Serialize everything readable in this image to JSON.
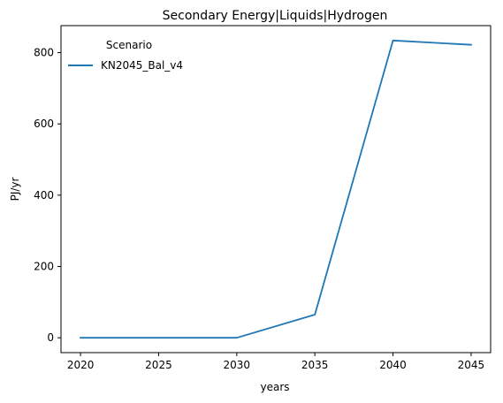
{
  "chart_data": {
    "type": "line",
    "title": "Secondary Energy|Liquids|Hydrogen",
    "xlabel": "years",
    "ylabel": "PJ/yr",
    "x": [
      2020,
      2025,
      2030,
      2035,
      2040,
      2045
    ],
    "series": [
      {
        "name": "KN2045_Bal_v4",
        "values": [
          0,
          0,
          0,
          65,
          834,
          822
        ],
        "color": "#1f77b4"
      }
    ],
    "xlim": [
      2018.75,
      2046.25
    ],
    "ylim": [
      -41.7,
      875.7
    ],
    "xticks": [
      2020,
      2025,
      2030,
      2035,
      2040,
      2045
    ],
    "yticks": [
      0,
      200,
      400,
      600,
      800
    ],
    "legend": {
      "title": "Scenario",
      "placement": "upper left"
    },
    "grid": false
  }
}
